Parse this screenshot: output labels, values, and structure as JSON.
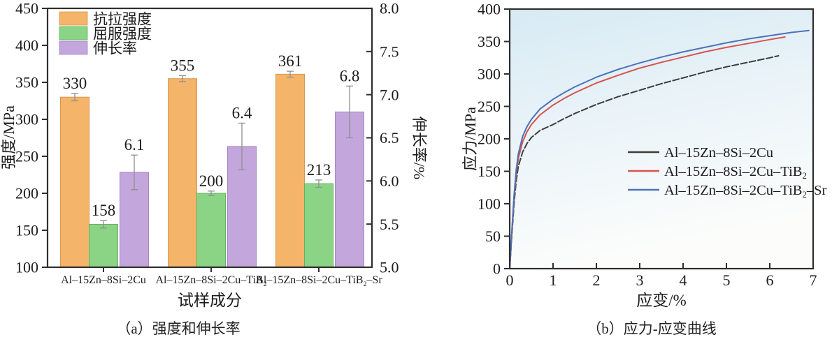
{
  "page": {
    "background": "#ffffff",
    "text_color": "#1c1c1c",
    "frame_color": "#2e2e2e"
  },
  "captions": {
    "a": "（a）强度和伸长率",
    "b": "（b）应力-应变曲线"
  },
  "chart_data": [
    {
      "type": "bar",
      "panel": "a",
      "xlabel": "试样成分",
      "ylabel_left": "强度/MPa",
      "ylabel_right": "伸长率/%",
      "ylim_left": [
        100,
        450
      ],
      "ylim_right": [
        5.0,
        8.0
      ],
      "yticks_left": [
        "100",
        "150",
        "200",
        "250",
        "300",
        "350",
        "400",
        "450"
      ],
      "yticks_right": [
        "5.0",
        "5.5",
        "6.0",
        "6.5",
        "7.0",
        "7.5",
        "8.0"
      ],
      "categories": [
        "Al–15Zn–8Si–2Cu",
        "Al–15Zn–8Si–2Cu–TiB₂",
        "Al–15Zn–8Si–2Cu–TiB₂–Sr"
      ],
      "grid": false,
      "legend_position": "upper-left",
      "series": [
        {
          "name": "抗拉强度",
          "axis": "left",
          "color": "#F4B469",
          "edge": "#D7974C",
          "values": [
            330,
            355,
            361
          ],
          "errors": [
            5,
            4,
            4
          ],
          "labels": [
            "330",
            "355",
            "361"
          ]
        },
        {
          "name": "屈服强度",
          "axis": "left",
          "color": "#8BD485",
          "edge": "#61B364",
          "values": [
            158,
            200,
            213
          ],
          "errors": [
            5,
            3,
            5
          ],
          "labels": [
            "158",
            "200",
            "213"
          ]
        },
        {
          "name": "伸长率",
          "axis": "right",
          "color": "#C3A6DC",
          "edge": "#A586C4",
          "values": [
            6.1,
            6.4,
            6.8
          ],
          "errors": [
            0.2,
            0.27,
            0.3
          ],
          "labels": [
            "6.1",
            "6.4",
            "6.8"
          ]
        }
      ]
    },
    {
      "type": "line",
      "panel": "b",
      "xlabel": "应变/%",
      "ylabel": "应力/MPa",
      "xlim": [
        0,
        7
      ],
      "ylim": [
        0,
        400
      ],
      "xticks": [
        "0",
        "1",
        "2",
        "3",
        "4",
        "5",
        "6",
        "7"
      ],
      "yticks": [
        "0",
        "50",
        "100",
        "150",
        "200",
        "250",
        "300",
        "350",
        "400"
      ],
      "grid": false,
      "legend_position": "center-right",
      "plot_bg_gradient": [
        "#D7EAF4",
        "#EDF5F9",
        "#FCFDFB"
      ],
      "series": [
        {
          "name": "Al–15Zn–8Si–2Cu",
          "color": "#3D3D3D",
          "dash": "9 3.5",
          "points": [
            [
              0,
              0
            ],
            [
              0.05,
              52
            ],
            [
              0.1,
              100
            ],
            [
              0.15,
              135
            ],
            [
              0.2,
              158
            ],
            [
              0.3,
              180
            ],
            [
              0.4,
              193
            ],
            [
              0.5,
              202
            ],
            [
              0.7,
              213
            ],
            [
              1,
              222
            ],
            [
              1.25,
              231
            ],
            [
              1.5,
              239
            ],
            [
              2,
              253
            ],
            [
              2.5,
              265
            ],
            [
              3,
              275
            ],
            [
              3.5,
              285
            ],
            [
              4,
              294
            ],
            [
              4.5,
              303
            ],
            [
              5,
              311
            ],
            [
              5.5,
              318
            ],
            [
              6,
              325
            ],
            [
              6.2,
              328
            ]
          ]
        },
        {
          "name": "Al–15Zn–8Si–2Cu–TiB₂",
          "color": "#D9534F",
          "dash": "",
          "points": [
            [
              0,
              0
            ],
            [
              0.05,
              56
            ],
            [
              0.1,
              108
            ],
            [
              0.15,
              146
            ],
            [
              0.2,
              170
            ],
            [
              0.3,
              196
            ],
            [
              0.4,
              211
            ],
            [
              0.5,
              222
            ],
            [
              0.7,
              237
            ],
            [
              1,
              252
            ],
            [
              1.25,
              262
            ],
            [
              1.5,
              271
            ],
            [
              2,
              286
            ],
            [
              2.5,
              298
            ],
            [
              3,
              309
            ],
            [
              3.5,
              318
            ],
            [
              4,
              326
            ],
            [
              4.5,
              334
            ],
            [
              5,
              341
            ],
            [
              5.5,
              347
            ],
            [
              6,
              353
            ],
            [
              6.35,
              357
            ]
          ]
        },
        {
          "name": "Al–15Zn–8Si–2Cu–TiB₂–Sr",
          "color": "#4C72B8",
          "dash": "",
          "points": [
            [
              0,
              0
            ],
            [
              0.05,
              58
            ],
            [
              0.1,
              112
            ],
            [
              0.15,
              152
            ],
            [
              0.2,
              177
            ],
            [
              0.3,
              204
            ],
            [
              0.4,
              219
            ],
            [
              0.5,
              230
            ],
            [
              0.7,
              246
            ],
            [
              1,
              261
            ],
            [
              1.25,
              271
            ],
            [
              1.5,
              280
            ],
            [
              2,
              295
            ],
            [
              2.5,
              307
            ],
            [
              3,
              317
            ],
            [
              3.5,
              326
            ],
            [
              4,
              334
            ],
            [
              4.5,
              341
            ],
            [
              5,
              348
            ],
            [
              5.5,
              354
            ],
            [
              6,
              359
            ],
            [
              6.5,
              364
            ],
            [
              6.9,
              367
            ]
          ]
        }
      ]
    }
  ]
}
